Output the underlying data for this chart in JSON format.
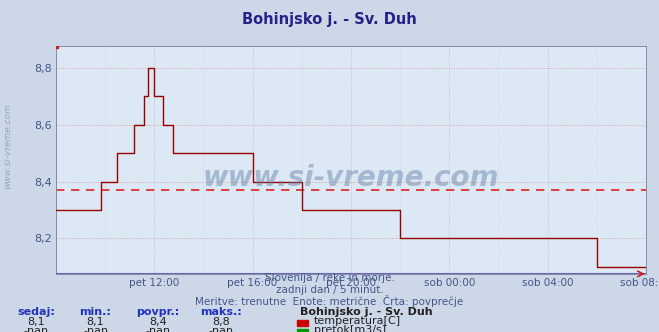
{
  "title": "Bohinjsko j. - Sv. Duh",
  "bg_color": "#ccd8e8",
  "plot_bg_color": "#dce8f4",
  "grid_color_h": "#e08080",
  "grid_color_v": "#c0c0d8",
  "avg_line_color": "#dd2222",
  "avg_value": 8.37,
  "ylim": [
    8.075,
    8.875
  ],
  "yticks": [
    8.2,
    8.4,
    8.6,
    8.8
  ],
  "ytick_labels": [
    "8,2",
    "8,4",
    "8,6",
    "8,8"
  ],
  "xtick_labels": [
    "pet 12:00",
    "pet 16:00",
    "pet 20:00",
    "sob 00:00",
    "sob 04:00",
    "sob 08:00"
  ],
  "temp_color": "#990000",
  "flow_color": "#009900",
  "watermark_color": "#6080a8",
  "subtitle1": "Slovenija / reke in morje.",
  "subtitle2": "zadnji dan / 5 minut.",
  "subtitle3": "Meritve: trenutne  Enote: metrične  Črta: povprečje",
  "footer_label1": "sedaj:",
  "footer_label2": "min.:",
  "footer_label3": "povpr.:",
  "footer_label4": "maks.:",
  "footer_val_sedaj": "8,1",
  "footer_val_min": "8,1",
  "footer_val_povpr": "8,4",
  "footer_val_maks": "8,8",
  "footer_station": "Bohinjsko j. - Sv. Duh",
  "footer_temp_label": "temperatura[C]",
  "footer_flow_label": "pretok[m3/s]",
  "footer_nan1": "-nan",
  "footer_nan2": "-nan",
  "footer_nan3": "-nan",
  "footer_nan4": "-nan",
  "n_points": 289,
  "temp_data": [
    8.3,
    8.3,
    8.3,
    8.3,
    8.3,
    8.3,
    8.3,
    8.3,
    8.3,
    8.3,
    8.3,
    8.3,
    8.3,
    8.3,
    8.3,
    8.3,
    8.3,
    8.3,
    8.3,
    8.3,
    8.3,
    8.3,
    8.4,
    8.4,
    8.4,
    8.4,
    8.4,
    8.4,
    8.4,
    8.4,
    8.5,
    8.5,
    8.5,
    8.5,
    8.5,
    8.5,
    8.5,
    8.5,
    8.6,
    8.6,
    8.6,
    8.6,
    8.6,
    8.7,
    8.7,
    8.8,
    8.8,
    8.8,
    8.7,
    8.7,
    8.7,
    8.7,
    8.6,
    8.6,
    8.6,
    8.6,
    8.6,
    8.5,
    8.5,
    8.5,
    8.5,
    8.5,
    8.5,
    8.5,
    8.5,
    8.5,
    8.5,
    8.5,
    8.5,
    8.5,
    8.5,
    8.5,
    8.5,
    8.5,
    8.5,
    8.5,
    8.5,
    8.5,
    8.5,
    8.5,
    8.5,
    8.5,
    8.5,
    8.5,
    8.5,
    8.5,
    8.5,
    8.5,
    8.5,
    8.5,
    8.5,
    8.5,
    8.5,
    8.5,
    8.5,
    8.5,
    8.4,
    8.4,
    8.4,
    8.4,
    8.4,
    8.4,
    8.4,
    8.4,
    8.4,
    8.4,
    8.4,
    8.4,
    8.4,
    8.4,
    8.4,
    8.4,
    8.4,
    8.4,
    8.4,
    8.4,
    8.4,
    8.4,
    8.4,
    8.4,
    8.3,
    8.3,
    8.3,
    8.3,
    8.3,
    8.3,
    8.3,
    8.3,
    8.3,
    8.3,
    8.3,
    8.3,
    8.3,
    8.3,
    8.3,
    8.3,
    8.3,
    8.3,
    8.3,
    8.3,
    8.3,
    8.3,
    8.3,
    8.3,
    8.3,
    8.3,
    8.3,
    8.3,
    8.3,
    8.3,
    8.3,
    8.3,
    8.3,
    8.3,
    8.3,
    8.3,
    8.3,
    8.3,
    8.3,
    8.3,
    8.3,
    8.3,
    8.3,
    8.3,
    8.3,
    8.3,
    8.3,
    8.3,
    8.2,
    8.2,
    8.2,
    8.2,
    8.2,
    8.2,
    8.2,
    8.2,
    8.2,
    8.2,
    8.2,
    8.2,
    8.2,
    8.2,
    8.2,
    8.2,
    8.2,
    8.2,
    8.2,
    8.2,
    8.2,
    8.2,
    8.2,
    8.2,
    8.2,
    8.2,
    8.2,
    8.2,
    8.2,
    8.2,
    8.2,
    8.2,
    8.2,
    8.2,
    8.2,
    8.2,
    8.2,
    8.2,
    8.2,
    8.2,
    8.2,
    8.2,
    8.2,
    8.2,
    8.2,
    8.2,
    8.2,
    8.2,
    8.2,
    8.2,
    8.2,
    8.2,
    8.2,
    8.2,
    8.2,
    8.2,
    8.2,
    8.2,
    8.2,
    8.2,
    8.2,
    8.2,
    8.2,
    8.2,
    8.2,
    8.2,
    8.2,
    8.2,
    8.2,
    8.2,
    8.2,
    8.2,
    8.2,
    8.2,
    8.2,
    8.2,
    8.2,
    8.2,
    8.2,
    8.2,
    8.2,
    8.2,
    8.2,
    8.2,
    8.2,
    8.2,
    8.2,
    8.2,
    8.2,
    8.2,
    8.2,
    8.2,
    8.2,
    8.2,
    8.2,
    8.2,
    8.1,
    8.1,
    8.1,
    8.1,
    8.1,
    8.1,
    8.1,
    8.1,
    8.1,
    8.1,
    8.1,
    8.1,
    8.1,
    8.1,
    8.1,
    8.1,
    8.1,
    8.1,
    8.1,
    8.1,
    8.1,
    8.1,
    8.1,
    8.1,
    8.1
  ]
}
